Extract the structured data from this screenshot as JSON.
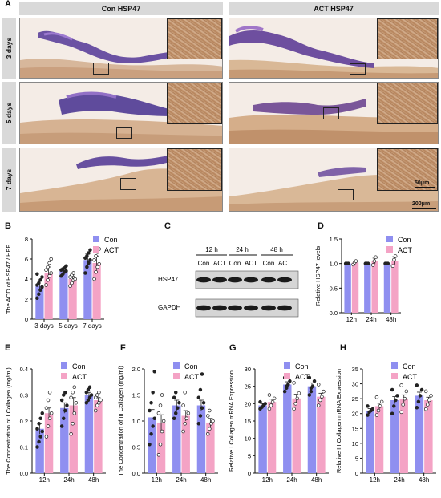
{
  "panel_letters": [
    "A",
    "B",
    "C",
    "D",
    "E",
    "F",
    "G",
    "H"
  ],
  "panel_a": {
    "headers": [
      "Con  HSP47",
      "ACT  HSP47"
    ],
    "rows": [
      "3 days",
      "5 days",
      "7 days"
    ],
    "scale_inset": "50μm",
    "scale_main": "200μm"
  },
  "legend": {
    "con": "Con",
    "act": "ACT"
  },
  "colors": {
    "con": "#8f8ff0",
    "act": "#f4a3c5",
    "header_bg": "#d9d9d9"
  },
  "western": {
    "timepoints": [
      "12 h",
      "24 h",
      "48 h"
    ],
    "lanes": [
      "Con",
      "ACT",
      "Con",
      "ACT",
      "Con",
      "ACT"
    ],
    "bands": [
      "HSP47",
      "GAPDH"
    ]
  },
  "chart_data": [
    {
      "id": "B",
      "type": "bar",
      "ylabel": "The AOD of HSP47 / HPF",
      "categories": [
        "3 days",
        "5 days",
        "7 days"
      ],
      "ylim": [
        0,
        8
      ],
      "yticks": [
        0,
        2,
        4,
        6,
        8
      ],
      "series": [
        {
          "name": "Con",
          "values": [
            3.3,
            4.8,
            5.9
          ],
          "errors": [
            0.5,
            0.3,
            0.6
          ],
          "points": [
            [
              2.1,
              2.5,
              2.9,
              3.2,
              3.4,
              3.6,
              3.9,
              4.2,
              4.5
            ],
            [
              4.3,
              4.5,
              4.7,
              4.8,
              4.9,
              5.0,
              5.1,
              5.3
            ],
            [
              4.6,
              5.2,
              5.6,
              5.9,
              6.1,
              6.3,
              6.6,
              6.9
            ]
          ]
        },
        {
          "name": "ACT",
          "values": [
            4.6,
            4.0,
            5.6
          ],
          "errors": [
            0.6,
            0.3,
            0.7
          ],
          "points": [
            [
              3.4,
              3.9,
              4.3,
              4.6,
              4.9,
              5.2,
              5.6,
              6.0
            ],
            [
              3.3,
              3.6,
              3.9,
              4.0,
              4.2,
              4.4,
              4.6
            ],
            [
              4.0,
              4.7,
              5.2,
              5.5,
              5.9,
              6.3,
              6.7,
              7.0
            ]
          ]
        }
      ]
    },
    {
      "id": "D",
      "type": "bar",
      "ylabel": "Relative HSP47 levels",
      "categories": [
        "12h",
        "24h",
        "48h"
      ],
      "ylim": [
        0,
        1.5
      ],
      "yticks": [
        0.0,
        0.5,
        1.0,
        1.5
      ],
      "series": [
        {
          "name": "Con",
          "values": [
            1.0,
            1.0,
            1.0
          ],
          "errors": [
            0.01,
            0.01,
            0.01
          ],
          "points": [
            [
              1.0,
              1.0,
              1.0
            ],
            [
              1.0,
              1.0,
              1.0
            ],
            [
              1.0,
              1.0,
              1.0
            ]
          ]
        },
        {
          "name": "ACT",
          "values": [
            1.02,
            1.05,
            1.06
          ],
          "errors": [
            0.03,
            0.06,
            0.08
          ],
          "points": [
            [
              0.98,
              1.02,
              1.05
            ],
            [
              0.97,
              1.05,
              1.13
            ],
            [
              0.95,
              1.08,
              1.15
            ]
          ]
        }
      ]
    },
    {
      "id": "E",
      "type": "bar",
      "ylabel": "The Concentration of I Collagen (mg/ml)",
      "categories": [
        "12h",
        "24h",
        "48h"
      ],
      "ylim": [
        0,
        0.4
      ],
      "yticks": [
        0.0,
        0.1,
        0.2,
        0.3,
        0.4
      ],
      "series": [
        {
          "name": "Con",
          "values": [
            0.17,
            0.25,
            0.3
          ],
          "errors": [
            0.02,
            0.02,
            0.01
          ],
          "points": [
            [
              0.1,
              0.12,
              0.14,
              0.16,
              0.17,
              0.19,
              0.21,
              0.23
            ],
            [
              0.18,
              0.21,
              0.24,
              0.26,
              0.28,
              0.3,
              0.31
            ],
            [
              0.27,
              0.28,
              0.29,
              0.3,
              0.31,
              0.32,
              0.33
            ]
          ]
        },
        {
          "name": "ACT",
          "values": [
            0.23,
            0.26,
            0.28
          ],
          "errors": [
            0.02,
            0.03,
            0.01
          ],
          "points": [
            [
              0.14,
              0.18,
              0.21,
              0.23,
              0.25,
              0.28,
              0.31
            ],
            [
              0.15,
              0.19,
              0.23,
              0.27,
              0.29,
              0.31,
              0.33
            ],
            [
              0.24,
              0.26,
              0.27,
              0.28,
              0.29,
              0.3,
              0.31
            ]
          ]
        }
      ]
    },
    {
      "id": "F",
      "type": "bar",
      "ylabel": "The Concentration of III Collagen (mg/ml)",
      "categories": [
        "12h",
        "24h",
        "48h"
      ],
      "ylim": [
        0,
        2.0
      ],
      "yticks": [
        0.0,
        0.5,
        1.0,
        1.5,
        2.0
      ],
      "series": [
        {
          "name": "Con",
          "values": [
            1.07,
            1.3,
            1.3
          ],
          "errors": [
            0.15,
            0.1,
            0.1
          ],
          "points": [
            [
              0.55,
              0.75,
              0.9,
              1.05,
              1.2,
              1.35,
              1.55,
              1.95
            ],
            [
              1.05,
              1.15,
              1.25,
              1.35,
              1.45,
              1.55
            ],
            [
              0.95,
              1.1,
              1.25,
              1.35,
              1.45,
              1.6,
              1.9
            ]
          ]
        },
        {
          "name": "ACT",
          "values": [
            0.97,
            1.1,
            0.97
          ],
          "errors": [
            0.15,
            0.1,
            0.08
          ],
          "points": [
            [
              0.35,
              0.55,
              0.8,
              1.0,
              1.15,
              1.3,
              1.5
            ],
            [
              0.8,
              0.95,
              1.05,
              1.15,
              1.3,
              1.55
            ],
            [
              0.75,
              0.85,
              0.95,
              1.0,
              1.1,
              1.2
            ]
          ]
        }
      ]
    },
    {
      "id": "G",
      "type": "bar",
      "ylabel": "Relative I Collagen  mRNA Expression",
      "categories": [
        "12h",
        "24h",
        "48h"
      ],
      "ylim": [
        0,
        30
      ],
      "yticks": [
        0,
        5,
        10,
        15,
        20,
        25,
        30
      ],
      "series": [
        {
          "name": "Con",
          "values": [
            19.5,
            25.5,
            25.0
          ],
          "errors": [
            0.5,
            0.8,
            1.0
          ],
          "points": [
            [
              18.5,
              19.0,
              19.5,
              20.0,
              20.5,
              19.0
            ],
            [
              23.5,
              24.5,
              25.5,
              26.5,
              27.5,
              25.0
            ],
            [
              22.5,
              23.5,
              25.0,
              26.5,
              27.5,
              24.5
            ]
          ]
        },
        {
          "name": "ACT",
          "values": [
            20.5,
            21.5,
            22.0
          ],
          "errors": [
            0.8,
            1.2,
            1.0
          ],
          "points": [
            [
              18.5,
              19.5,
              20.5,
              21.5,
              22.5
            ],
            [
              18.5,
              20.0,
              21.5,
              23.0,
              26.0
            ],
            [
              19.5,
              21.0,
              22.0,
              23.5,
              25.5
            ]
          ]
        }
      ]
    },
    {
      "id": "H",
      "type": "bar",
      "ylabel": "Relative III Collagen  mRNA Expression",
      "categories": [
        "12h",
        "24h",
        "48h"
      ],
      "ylim": [
        0,
        35
      ],
      "yticks": [
        0,
        5,
        10,
        15,
        20,
        25,
        30,
        35
      ],
      "series": [
        {
          "name": "Con",
          "values": [
            21.0,
            24.5,
            26.0
          ],
          "errors": [
            0.7,
            1.2,
            1.2
          ],
          "points": [
            [
              19.5,
              20.5,
              21.0,
              21.5,
              22.5
            ],
            [
              20.0,
              22.5,
              24.5,
              26.0,
              28.0
            ],
            [
              22.0,
              24.0,
              26.0,
              28.0,
              29.5
            ]
          ]
        },
        {
          "name": "ACT",
          "values": [
            22.5,
            25.0,
            24.5
          ],
          "errors": [
            1.0,
            1.3,
            1.0
          ],
          "points": [
            [
              19.5,
              21.0,
              22.5,
              24.0,
              25.5
            ],
            [
              20.5,
              23.0,
              25.0,
              27.5,
              29.5
            ],
            [
              21.5,
              23.0,
              24.5,
              26.0,
              27.5
            ]
          ]
        }
      ]
    }
  ]
}
